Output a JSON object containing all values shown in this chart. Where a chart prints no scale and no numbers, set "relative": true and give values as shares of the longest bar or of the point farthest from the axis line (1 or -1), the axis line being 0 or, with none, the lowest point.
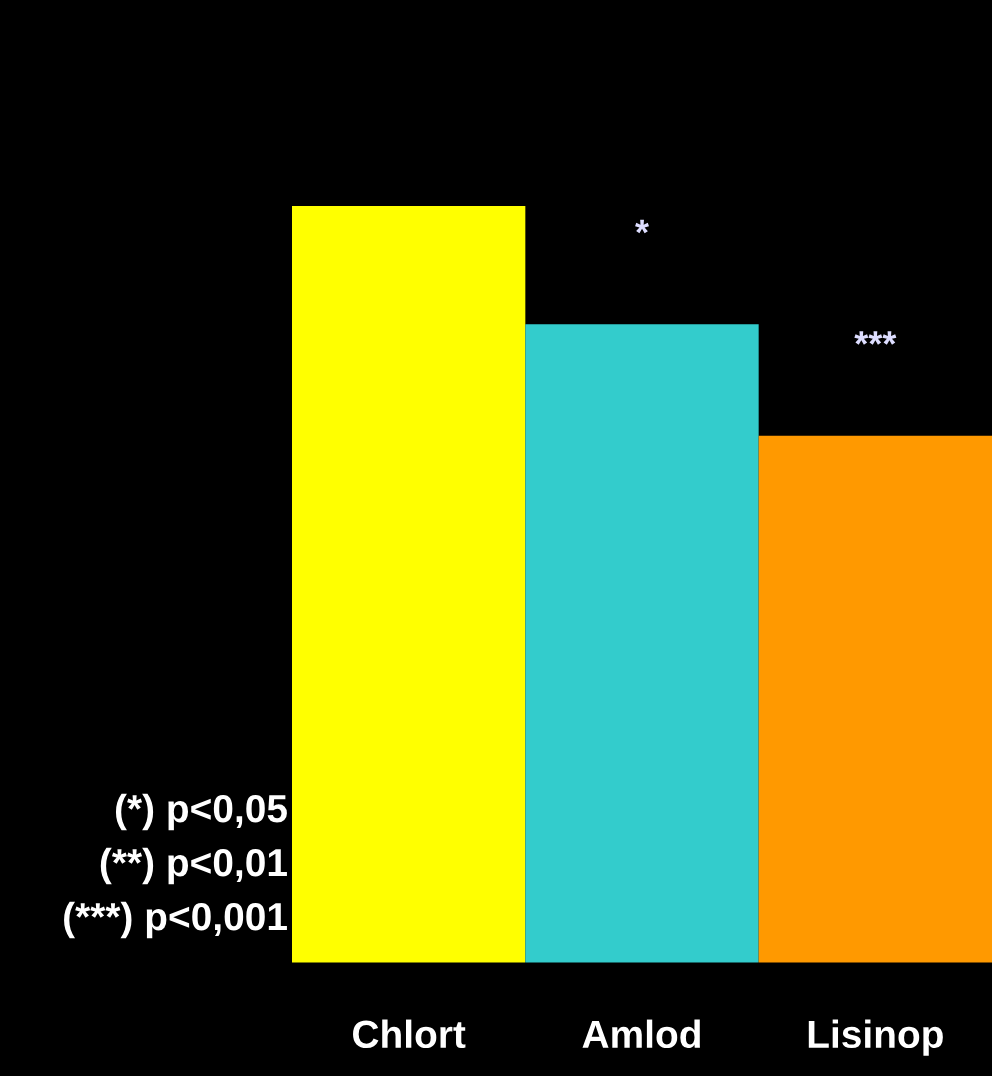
{
  "chart_data": {
    "type": "bar",
    "relative": true,
    "categories": [
      "Chlort",
      "Amlod",
      "Lisinop"
    ],
    "values": [
      1,
      0.844,
      0.697
    ],
    "colors": [
      "#ffff00",
      "#33cccc",
      "#ff9900"
    ],
    "annotations": [
      "*",
      "***",
      "(*) p<0,05",
      "(**) p<0,01",
      "(***) p<0,001"
    ],
    "grid": false,
    "legend": false
  }
}
